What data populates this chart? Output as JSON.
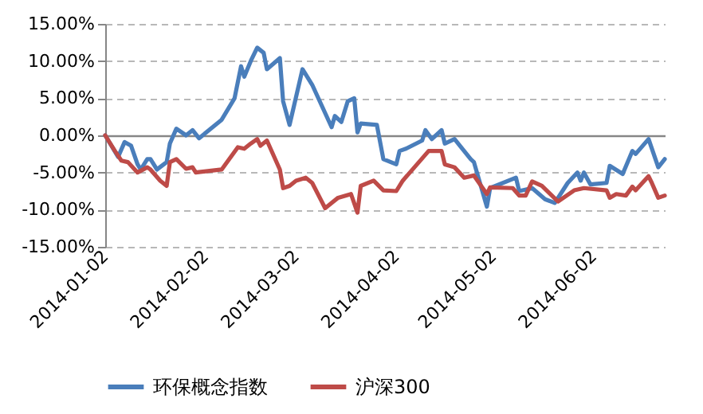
{
  "chart_data": {
    "type": "line",
    "xlim": [
      "2014-01-02",
      "2014-06-24"
    ],
    "xticks": [
      "2014-01-02",
      "2014-02-02",
      "2014-03-02",
      "2014-04-02",
      "2014-05-02",
      "2014-06-02"
    ],
    "ylim": [
      -15,
      15
    ],
    "yticks": [
      {
        "value": -15,
        "label": "-15.00%"
      },
      {
        "value": -10,
        "label": "-10.00%"
      },
      {
        "value": -5,
        "label": "-5.00%"
      },
      {
        "value": 0,
        "label": "0.00%"
      },
      {
        "value": 5,
        "label": "5.00%"
      },
      {
        "value": 10,
        "label": "10.00%"
      },
      {
        "value": 15,
        "label": "15.00%"
      }
    ],
    "grid": "y",
    "legend": "bottom",
    "series": [
      {
        "name": "环保概念指数",
        "color": "#4a7ebb",
        "x": [
          "2014-01-02",
          "2014-01-06",
          "2014-01-08",
          "2014-01-10",
          "2014-01-12",
          "2014-01-13",
          "2014-01-15",
          "2014-01-16",
          "2014-01-18",
          "2014-01-21",
          "2014-01-22",
          "2014-01-24",
          "2014-01-27",
          "2014-01-29",
          "2014-01-31",
          "2014-02-07",
          "2014-02-11",
          "2014-02-13",
          "2014-02-14",
          "2014-02-16",
          "2014-02-18",
          "2014-02-20",
          "2014-02-21",
          "2014-02-25",
          "2014-02-26",
          "2014-02-28",
          "2014-03-04",
          "2014-03-07",
          "2014-03-13",
          "2014-03-14",
          "2014-03-16",
          "2014-03-18",
          "2014-03-20",
          "2014-03-21",
          "2014-03-22",
          "2014-03-27",
          "2014-03-29",
          "2014-04-02",
          "2014-04-03",
          "2014-04-05",
          "2014-04-10",
          "2014-04-11",
          "2014-04-13",
          "2014-04-16",
          "2014-04-17",
          "2014-04-20",
          "2014-04-25",
          "2014-04-26",
          "2014-04-30",
          "2014-05-01",
          "2014-05-09",
          "2014-05-10",
          "2014-05-14",
          "2014-05-18",
          "2014-05-21",
          "2014-05-25",
          "2014-05-28",
          "2014-05-29",
          "2014-05-30",
          "2014-06-01",
          "2014-06-06",
          "2014-06-07",
          "2014-06-11",
          "2014-06-14",
          "2014-06-15",
          "2014-06-19",
          "2014-06-22",
          "2014-06-24"
        ],
        "values": [
          0,
          -2.9,
          -0.9,
          -1.4,
          -3.9,
          -4.6,
          -3.2,
          -3.2,
          -4.6,
          -3.6,
          -1.1,
          0.9,
          0,
          0.7,
          -0.4,
          2.1,
          5.0,
          9.3,
          7.9,
          10.0,
          11.8,
          11.1,
          8.9,
          10.4,
          4.6,
          1.4,
          8.9,
          6.8,
          1.1,
          2.6,
          1.8,
          4.6,
          5.0,
          0.4,
          1.6,
          1.4,
          -3.2,
          -3.9,
          -2.1,
          -1.8,
          -0.7,
          0.7,
          -0.5,
          0.7,
          -1.1,
          -0.5,
          -3.2,
          -3.6,
          -9.6,
          -7.1,
          -5.7,
          -7.5,
          -7.1,
          -8.6,
          -9.1,
          -6.4,
          -5.0,
          -6.1,
          -5.0,
          -6.6,
          -6.4,
          -4.1,
          -5.2,
          -2.1,
          -2.5,
          -0.5,
          -4.3,
          -3.2
        ]
      },
      {
        "name": "沪深300",
        "color": "#be4b48",
        "x": [
          "2014-01-02",
          "2014-01-05",
          "2014-01-07",
          "2014-01-09",
          "2014-01-12",
          "2014-01-15",
          "2014-01-16",
          "2014-01-19",
          "2014-01-21",
          "2014-01-22",
          "2014-01-24",
          "2014-01-27",
          "2014-01-29",
          "2014-01-30",
          "2014-02-07",
          "2014-02-12",
          "2014-02-14",
          "2014-02-16",
          "2014-02-18",
          "2014-02-19",
          "2014-02-21",
          "2014-02-25",
          "2014-02-26",
          "2014-02-28",
          "2014-03-02",
          "2014-03-05",
          "2014-03-07",
          "2014-03-11",
          "2014-03-15",
          "2014-03-19",
          "2014-03-21",
          "2014-03-22",
          "2014-03-26",
          "2014-03-29",
          "2014-04-02",
          "2014-04-04",
          "2014-04-12",
          "2014-04-16",
          "2014-04-17",
          "2014-04-20",
          "2014-04-23",
          "2014-04-26",
          "2014-04-30",
          "2014-05-01",
          "2014-05-08",
          "2014-05-10",
          "2014-05-12",
          "2014-05-14",
          "2014-05-17",
          "2014-05-22",
          "2014-05-27",
          "2014-05-30",
          "2014-06-06",
          "2014-06-07",
          "2014-06-09",
          "2014-06-12",
          "2014-06-14",
          "2014-06-15",
          "2014-06-19",
          "2014-06-20",
          "2014-06-22",
          "2014-06-24"
        ],
        "values": [
          0,
          -2.1,
          -3.4,
          -3.6,
          -5.0,
          -4.3,
          -4.6,
          -6.1,
          -6.8,
          -3.6,
          -3.2,
          -4.5,
          -4.3,
          -5.0,
          -4.6,
          -1.6,
          -1.8,
          -1.1,
          -0.5,
          -1.4,
          -0.7,
          -4.6,
          -7.1,
          -6.8,
          -6.1,
          -5.7,
          -6.4,
          -9.8,
          -8.4,
          -7.9,
          -10.4,
          -6.8,
          -6.1,
          -7.4,
          -7.5,
          -6.1,
          -2.1,
          -2.1,
          -3.9,
          -4.3,
          -5.7,
          -5.4,
          -7.9,
          -7.0,
          -7.1,
          -8.1,
          -8.1,
          -6.2,
          -6.8,
          -8.9,
          -7.4,
          -7.1,
          -7.4,
          -8.4,
          -7.9,
          -8.1,
          -6.9,
          -7.4,
          -5.5,
          -6.4,
          -8.4,
          -8.1
        ]
      }
    ]
  }
}
